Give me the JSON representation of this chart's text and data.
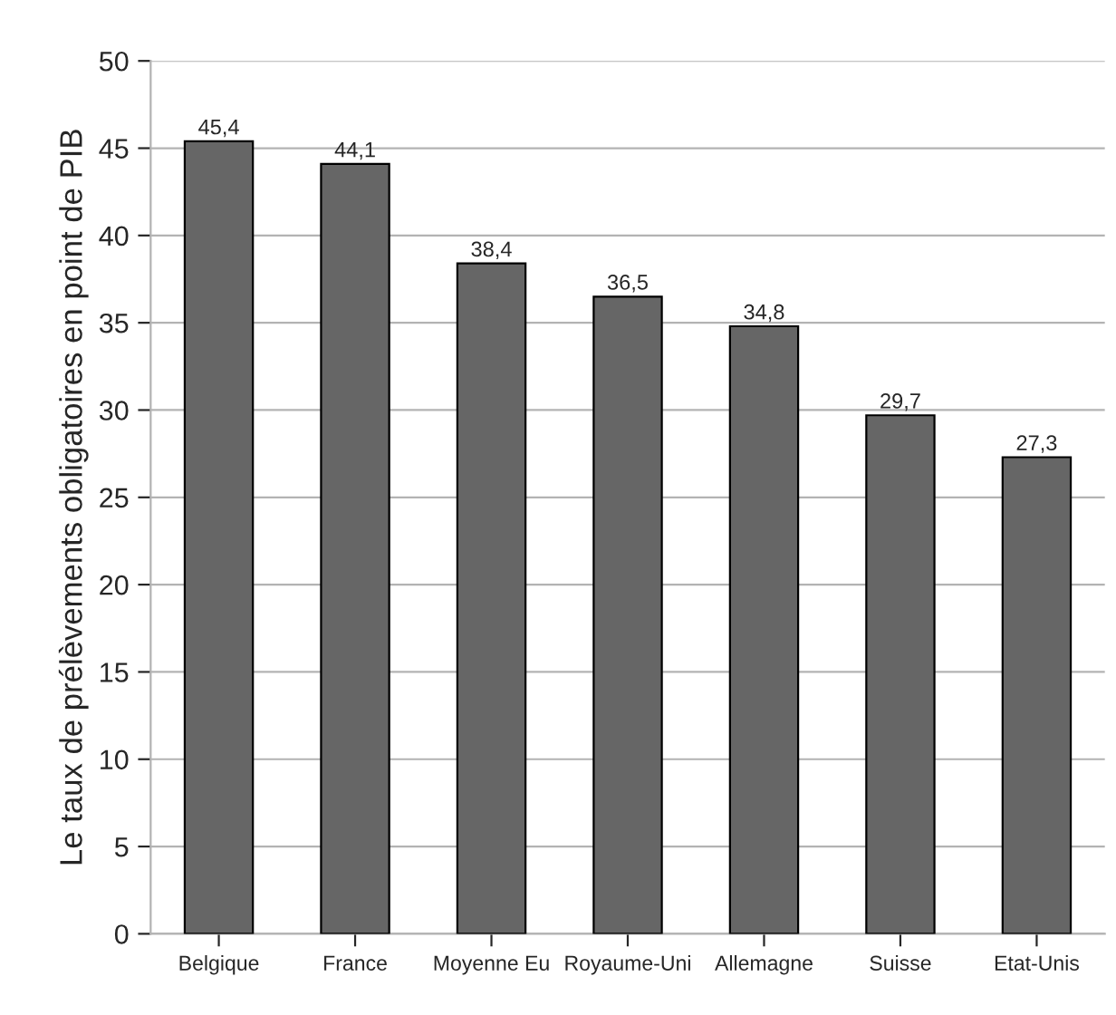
{
  "chart_data": {
    "type": "bar",
    "ylabel": "Le taux de prélèvements obligatoires en point de PIB",
    "categories": [
      "Belgique",
      "France",
      "Moyenne Eu",
      "Royaume-Uni",
      "Allemagne",
      "Suisse",
      "Etat-Unis"
    ],
    "values": [
      45.4,
      44.1,
      38.4,
      36.5,
      34.8,
      29.7,
      27.3
    ],
    "value_labels": [
      "45,4",
      "44,1",
      "38,4",
      "36,5",
      "34,8",
      "29,7",
      "27,3"
    ],
    "color": "#666666",
    "ylim": [
      0,
      50
    ],
    "yticks": [
      0,
      5,
      10,
      15,
      20,
      25,
      30,
      35,
      40,
      45,
      50
    ],
    "grid": "y"
  }
}
